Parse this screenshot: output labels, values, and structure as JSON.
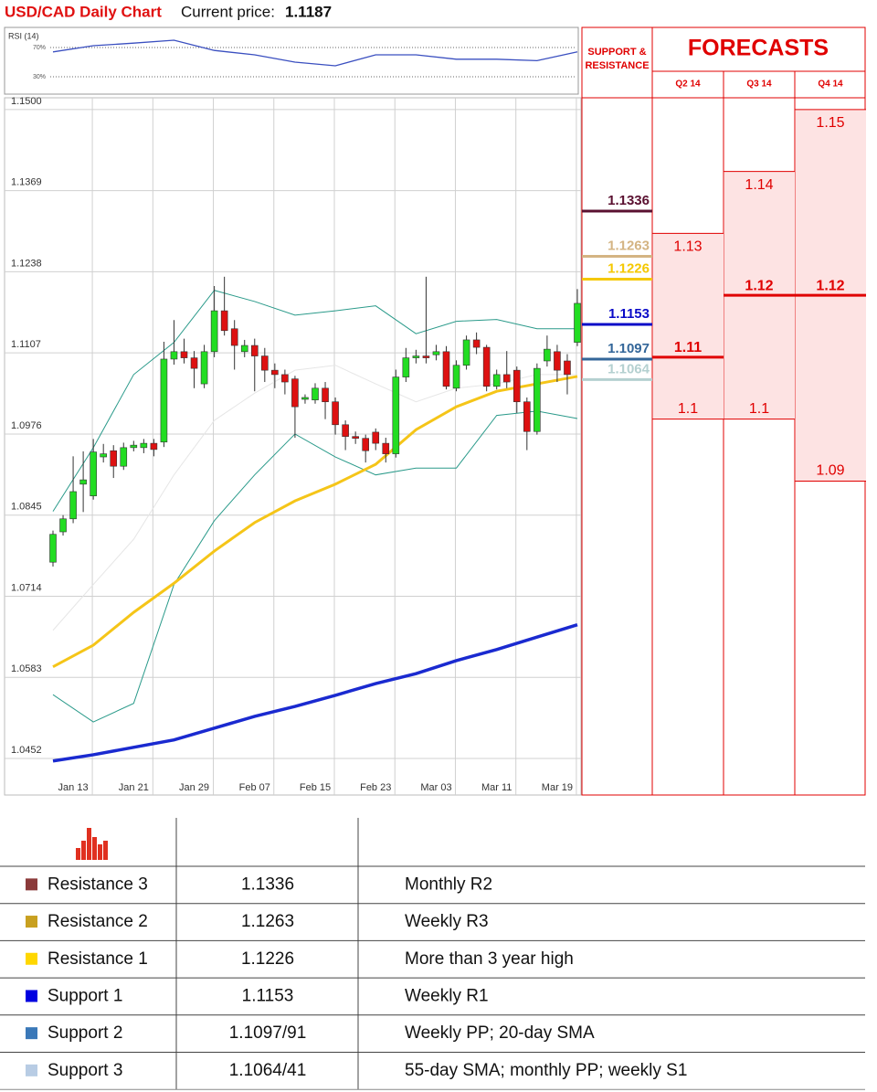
{
  "header": {
    "title": "USD/CAD Daily Chart",
    "price_label": "Current price:",
    "price": 1.1187
  },
  "chart_data": [
    {
      "type": "line",
      "title": "RSI (14)",
      "x": [
        0,
        4,
        8,
        12,
        16,
        20,
        24,
        28,
        32,
        36,
        40,
        44,
        48,
        52
      ],
      "values": [
        64,
        72.5,
        76,
        80,
        66,
        60,
        50,
        45,
        60,
        60,
        54,
        54,
        52,
        64
      ],
      "color": "#3a4fc0",
      "xlim": [
        0,
        52
      ],
      "ylim": [
        6.25,
        97.5
      ],
      "yticks": [
        {
          "value": 70,
          "label": "70%"
        },
        {
          "value": 30,
          "label": "30%"
        }
      ]
    },
    {
      "type": "candlestick",
      "categories": [
        null,
        null,
        "Jan 13",
        null,
        null,
        null,
        null,
        null,
        "Jan 21",
        null,
        null,
        null,
        null,
        null,
        "Jan 29",
        null,
        null,
        null,
        null,
        null,
        "Feb 07",
        null,
        null,
        null,
        null,
        null,
        "Feb 15",
        null,
        null,
        null,
        null,
        null,
        "Feb 23",
        null,
        null,
        null,
        null,
        null,
        "Mar 03",
        null,
        null,
        null,
        null,
        null,
        "Mar 11",
        null,
        null,
        null,
        null,
        null,
        "Mar 19",
        null,
        null
      ],
      "open": [
        1.0769,
        1.0818,
        1.0839,
        1.0895,
        1.0876,
        1.0939,
        1.0949,
        1.0924,
        1.0954,
        1.0954,
        1.0961,
        1.0963,
        1.1097,
        1.1109,
        1.1099,
        1.1057,
        1.1109,
        1.1175,
        1.1146,
        1.1109,
        1.1119,
        1.1102,
        1.1079,
        1.1072,
        1.1065,
        1.1032,
        1.1031,
        1.105,
        1.1028,
        1.0991,
        1.0972,
        1.0969,
        1.0979,
        1.0961,
        1.0944,
        1.1068,
        1.1099,
        1.1102,
        1.1104,
        1.1109,
        1.105,
        1.1087,
        1.1128,
        1.1116,
        1.1053,
        1.1072,
        1.1079,
        1.1028,
        1.098,
        1.1094,
        1.1109,
        1.1094,
        1.1124
      ],
      "high": [
        1.082,
        1.0845,
        1.094,
        1.0948,
        1.0968,
        1.096,
        1.0958,
        1.0962,
        1.0965,
        1.0968,
        1.0968,
        1.1125,
        1.116,
        1.113,
        1.111,
        1.112,
        1.1215,
        1.123,
        1.116,
        1.1128,
        1.113,
        1.1115,
        1.109,
        1.108,
        1.107,
        1.104,
        1.1058,
        1.106,
        1.1035,
        1.0998,
        1.098,
        1.0975,
        1.0985,
        1.097,
        1.108,
        1.1115,
        1.1112,
        1.123,
        1.112,
        1.1118,
        1.1095,
        1.1135,
        1.114,
        1.112,
        1.108,
        1.111,
        1.1085,
        1.1035,
        1.109,
        1.1135,
        1.112,
        1.1105,
        1.121
      ],
      "low": [
        1.0762,
        1.0812,
        1.0832,
        1.085,
        1.087,
        1.093,
        1.0905,
        1.0918,
        1.0948,
        1.0945,
        1.094,
        1.0955,
        1.1088,
        1.109,
        1.105,
        1.105,
        1.11,
        1.1135,
        1.108,
        1.11,
        1.1045,
        1.106,
        1.105,
        1.104,
        1.097,
        1.1025,
        1.1025,
        1.1,
        1.0975,
        1.095,
        1.096,
        1.093,
        1.095,
        1.093,
        1.0938,
        1.106,
        1.109,
        1.109,
        1.1095,
        1.1048,
        1.1045,
        1.108,
        1.1105,
        1.1045,
        1.1048,
        1.105,
        1.101,
        1.095,
        1.0975,
        1.1085,
        1.106,
        1.104,
        1.1118
      ],
      "close": [
        1.0814,
        1.0839,
        1.0883,
        1.0902,
        1.0947,
        1.0944,
        1.0924,
        1.0954,
        1.0958,
        1.0961,
        1.0951,
        1.1097,
        1.1109,
        1.1099,
        1.1082,
        1.1109,
        1.1175,
        1.1143,
        1.1119,
        1.1119,
        1.1102,
        1.1079,
        1.1072,
        1.106,
        1.102,
        1.1035,
        1.105,
        1.1028,
        1.0991,
        1.0972,
        1.0969,
        1.0949,
        1.0961,
        1.0944,
        1.1068,
        1.1099,
        1.1102,
        1.1099,
        1.1109,
        1.1053,
        1.1087,
        1.1128,
        1.1116,
        1.1053,
        1.1072,
        1.106,
        1.1028,
        1.098,
        1.1082,
        1.1113,
        1.1079,
        1.1072,
        1.1187
      ],
      "up_color": "#22dd22",
      "down_color": "#dd1111",
      "ylim": [
        1.0393,
        1.1519
      ],
      "yticks": [
        {
          "value": 1.15,
          "label": "1.1500"
        },
        1.1369,
        1.1238,
        1.1107,
        1.0976,
        1.0845,
        1.0714,
        1.0583,
        1.0452
      ],
      "grid": true,
      "overlays": [
        {
          "x": [
            0,
            4,
            8,
            12,
            16,
            20,
            24,
            28,
            32,
            36,
            40,
            44,
            48,
            52
          ],
          "values": [
            1.0659,
            1.0733,
            1.0806,
            1.091,
            1.0998,
            1.1042,
            1.1079,
            1.1087,
            1.1057,
            1.1028,
            1.105,
            1.1057,
            1.1072,
            1.1072
          ],
          "color": "#e6e6e6",
          "width": 1
        },
        {
          "x": [
            0,
            4,
            8,
            12,
            16,
            20,
            24,
            28,
            32,
            36,
            40,
            44,
            48,
            52
          ],
          "values": [
            1.0851,
            1.0954,
            1.1072,
            1.1124,
            1.1208,
            1.119,
            1.1168,
            1.1175,
            1.1183,
            1.1138,
            1.1158,
            1.1161,
            1.1146,
            1.1146
          ],
          "color": "#2a9a8a",
          "width": 1
        },
        {
          "x": [
            0,
            4,
            8,
            12,
            16,
            20,
            24,
            28,
            32,
            36,
            40,
            44,
            48,
            52
          ],
          "values": [
            1.0555,
            1.0511,
            1.0541,
            1.0733,
            1.0836,
            1.091,
            1.0976,
            1.0939,
            1.091,
            1.0921,
            1.0921,
            1.1006,
            1.1013,
            1.1001
          ],
          "color": "#2a9a8a",
          "width": 1
        },
        {
          "x": [
            0,
            4,
            8,
            12,
            16,
            20,
            24,
            28,
            32,
            36,
            40,
            44,
            48,
            52
          ],
          "values": [
            1.06,
            1.0635,
            1.0688,
            1.0735,
            1.0787,
            1.0833,
            1.0868,
            1.0895,
            1.0927,
            1.0983,
            1.102,
            1.1045,
            1.1057,
            1.1069
          ],
          "color": "#f5c518",
          "width": 3
        },
        {
          "x": [
            0,
            4,
            8,
            12,
            16,
            20,
            24,
            28,
            32,
            36,
            40,
            44,
            48,
            52
          ],
          "values": [
            1.0448,
            1.0458,
            1.047,
            1.0482,
            1.0501,
            1.052,
            1.0536,
            1.0554,
            1.0573,
            1.0589,
            1.061,
            1.0628,
            1.0648,
            1.0668
          ],
          "color": "#1a2ad0",
          "width": 3.5
        }
      ],
      "levels_title": "SUPPORT & RESISTANCE",
      "levels": [
        {
          "value": 1.1336,
          "color": "#5a1030"
        },
        {
          "value": 1.1263,
          "color": "#d4b483"
        },
        {
          "value": 1.1226,
          "color": "#f5c800"
        },
        {
          "value": 1.1153,
          "color": "#0a0ac8"
        },
        {
          "value": 1.1097,
          "color": "#336699"
        },
        {
          "value": 1.1064,
          "color": "#b4d0d0"
        }
      ],
      "forecasts": {
        "title": "FORECASTS",
        "columns": [
          {
            "label": "Q2 14",
            "high": 1.13,
            "mid": 1.11,
            "low": 1.1
          },
          {
            "label": "Q3 14",
            "high": 1.14,
            "mid": 1.12,
            "low": 1.1
          },
          {
            "label": "Q4 14",
            "high": 1.15,
            "mid": 1.12,
            "low": 1.09
          }
        ]
      }
    }
  ],
  "table": {
    "swatches": [
      "#8b3a3a",
      "#c8a020",
      "#ffd700",
      "#0000e0",
      "#3a78b8",
      "#b8cce4"
    ],
    "rows": [
      [
        "Resistance 3",
        "1.1336",
        "Monthly R2"
      ],
      [
        "Resistance 2",
        "1.1263",
        "Weekly R3"
      ],
      [
        "Resistance 1",
        "1.1226",
        "More than 3 year high"
      ],
      [
        "Support 1",
        "1.1153",
        "Weekly R1"
      ],
      [
        "Support 2",
        "1.1097/91",
        "Weekly PP; 20-day SMA"
      ],
      [
        "Support 3",
        "1.1064/41",
        "55-day SMA; monthly PP; weekly S1"
      ]
    ]
  }
}
